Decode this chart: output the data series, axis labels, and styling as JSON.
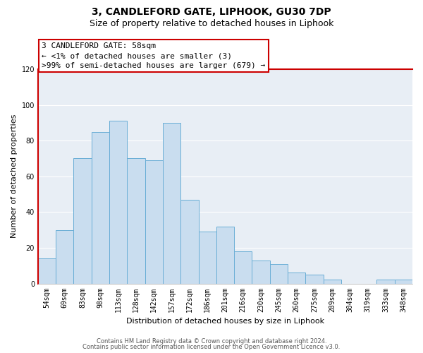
{
  "title": "3, CANDLEFORD GATE, LIPHOOK, GU30 7DP",
  "subtitle": "Size of property relative to detached houses in Liphook",
  "xlabel": "Distribution of detached houses by size in Liphook",
  "ylabel": "Number of detached properties",
  "categories": [
    "54sqm",
    "69sqm",
    "83sqm",
    "98sqm",
    "113sqm",
    "128sqm",
    "142sqm",
    "157sqm",
    "172sqm",
    "186sqm",
    "201sqm",
    "216sqm",
    "230sqm",
    "245sqm",
    "260sqm",
    "275sqm",
    "289sqm",
    "304sqm",
    "319sqm",
    "333sqm",
    "348sqm"
  ],
  "values": [
    14,
    30,
    70,
    85,
    91,
    70,
    69,
    90,
    47,
    29,
    32,
    18,
    13,
    11,
    6,
    5,
    2,
    0,
    0,
    2,
    2
  ],
  "bar_color": "#c9ddef",
  "bar_edge_color": "#6aaed6",
  "highlight_bar_edge_color": "#cc0000",
  "annotation_line1": "3 CANDLEFORD GATE: 58sqm",
  "annotation_line2": "← <1% of detached houses are smaller (3)",
  "annotation_line3": ">99% of semi-detached houses are larger (679) →",
  "annotation_box_edge_color": "#cc0000",
  "ylim": [
    0,
    120
  ],
  "yticks": [
    0,
    20,
    40,
    60,
    80,
    100,
    120
  ],
  "footer_line1": "Contains HM Land Registry data © Crown copyright and database right 2024.",
  "footer_line2": "Contains public sector information licensed under the Open Government Licence v3.0.",
  "bg_color": "#ffffff",
  "plot_bg_color": "#e8eef5",
  "grid_color": "#ffffff",
  "title_fontsize": 10,
  "subtitle_fontsize": 9,
  "axis_label_fontsize": 8,
  "tick_fontsize": 7,
  "annotation_fontsize": 8,
  "footer_fontsize": 6
}
